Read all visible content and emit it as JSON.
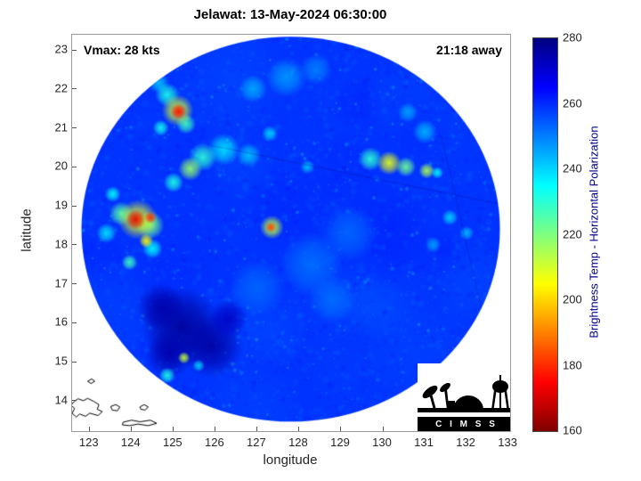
{
  "figure": {
    "title": "Jelawat: 13-May-2024 06:30:00",
    "storm_name": "Jelawat",
    "datetime": "13-May-2024 06:30:00",
    "annotation_left": "Vmax: 28 kts",
    "annotation_right": "21:18 away",
    "logo_text": "C I M S S"
  },
  "chart_data": {
    "type": "heatmap",
    "title": "Jelawat: 13-May-2024 06:30:00",
    "xlabel": "longitude",
    "ylabel": "latitude",
    "xlim": [
      122.58,
      133.04
    ],
    "ylim": [
      13.22,
      23.39
    ],
    "x_ticks": [
      123,
      124,
      125,
      126,
      127,
      128,
      129,
      130,
      131,
      132,
      133
    ],
    "y_ticks": [
      14,
      15,
      16,
      17,
      18,
      19,
      20,
      21,
      22,
      23
    ],
    "grid": false,
    "colorbar": {
      "label": "Brightness Temp - Horizontal Polarization",
      "min": 160,
      "max": 280,
      "ticks": [
        160,
        180,
        200,
        220,
        240,
        260,
        280
      ],
      "colormap": "jet-reversed",
      "stops": [
        [
          0,
          "#000080"
        ],
        [
          0.125,
          "#0000ff"
        ],
        [
          0.375,
          "#00ffff"
        ],
        [
          0.625,
          "#ffff00"
        ],
        [
          0.875,
          "#ff0000"
        ],
        [
          1,
          "#800000"
        ]
      ]
    },
    "swath": {
      "shape": "circular-microwave-swath",
      "center_lon": 127.8,
      "center_lat": 18.4,
      "radius_deg": 5.0,
      "background_temp_K": 259
    },
    "features_format": [
      "lon",
      "lat",
      "radius_deg",
      "temp_K"
    ],
    "features": [
      [
        125.2,
        15.9,
        1.0,
        277
      ],
      [
        124.7,
        16.4,
        0.6,
        275
      ],
      [
        125.9,
        15.4,
        0.8,
        276
      ],
      [
        126.3,
        16.1,
        0.5,
        272
      ],
      [
        124.9,
        15.2,
        0.6,
        275
      ],
      [
        124.15,
        18.65,
        0.5,
        208
      ],
      [
        124.1,
        18.65,
        0.25,
        172
      ],
      [
        124.45,
        18.7,
        0.15,
        180
      ],
      [
        124.45,
        18.5,
        0.35,
        222
      ],
      [
        123.75,
        18.8,
        0.3,
        225
      ],
      [
        124.35,
        18.1,
        0.18,
        205
      ],
      [
        124.5,
        17.9,
        0.25,
        235
      ],
      [
        125.1,
        21.45,
        0.4,
        210
      ],
      [
        125.12,
        21.42,
        0.2,
        175
      ],
      [
        124.85,
        21.85,
        0.3,
        232
      ],
      [
        124.65,
        22.15,
        0.25,
        242
      ],
      [
        125.3,
        21.1,
        0.25,
        228
      ],
      [
        124.7,
        21.0,
        0.2,
        233
      ],
      [
        127.35,
        18.45,
        0.3,
        212
      ],
      [
        127.33,
        18.45,
        0.13,
        182
      ],
      [
        130.15,
        20.1,
        0.3,
        208
      ],
      [
        130.55,
        20.0,
        0.25,
        222
      ],
      [
        129.7,
        20.2,
        0.3,
        230
      ],
      [
        131.05,
        19.9,
        0.2,
        215
      ],
      [
        131.3,
        19.85,
        0.15,
        235
      ],
      [
        125.4,
        19.95,
        0.3,
        218
      ],
      [
        125.7,
        20.25,
        0.35,
        230
      ],
      [
        126.2,
        20.45,
        0.4,
        238
      ],
      [
        126.8,
        20.3,
        0.3,
        242
      ],
      [
        125.0,
        19.6,
        0.25,
        232
      ],
      [
        127.3,
        20.85,
        0.2,
        240
      ],
      [
        128.2,
        20.0,
        0.18,
        243
      ],
      [
        123.95,
        17.55,
        0.2,
        228
      ],
      [
        123.55,
        19.3,
        0.2,
        235
      ],
      [
        123.4,
        18.3,
        0.25,
        238
      ],
      [
        125.25,
        15.1,
        0.15,
        212
      ],
      [
        124.85,
        14.65,
        0.2,
        232
      ],
      [
        125.6,
        14.9,
        0.15,
        240
      ],
      [
        127.7,
        22.3,
        0.5,
        247
      ],
      [
        128.4,
        22.5,
        0.4,
        250
      ],
      [
        126.9,
        22.0,
        0.35,
        245
      ],
      [
        131.6,
        18.7,
        0.2,
        240
      ],
      [
        132.0,
        18.3,
        0.18,
        243
      ],
      [
        131.2,
        18.0,
        0.2,
        246
      ],
      [
        131.0,
        20.9,
        0.3,
        244
      ],
      [
        130.6,
        21.4,
        0.25,
        246
      ],
      [
        128.3,
        17.5,
        0.8,
        252
      ],
      [
        129.2,
        18.3,
        0.7,
        253
      ],
      [
        127.0,
        16.9,
        0.7,
        253
      ],
      [
        128.8,
        16.6,
        0.6,
        252
      ]
    ],
    "seams": [
      [
        [
          125.9,
          20.55
        ],
        [
          133.0,
          19.0
        ]
      ],
      [
        [
          131.4,
          20.8
        ],
        [
          132.6,
          15.2
        ]
      ]
    ],
    "coastlines": [
      [
        [
          122.6,
          13.95
        ],
        [
          122.72,
          14.05
        ],
        [
          122.85,
          14.0
        ],
        [
          122.95,
          14.06
        ],
        [
          123.1,
          13.98
        ],
        [
          123.22,
          13.9
        ],
        [
          123.18,
          13.78
        ],
        [
          123.3,
          13.72
        ],
        [
          123.2,
          13.62
        ],
        [
          123.0,
          13.68
        ],
        [
          122.9,
          13.6
        ],
        [
          122.76,
          13.66
        ],
        [
          122.68,
          13.58
        ],
        [
          122.58,
          13.68
        ],
        [
          122.64,
          13.8
        ],
        [
          122.56,
          13.88
        ]
      ],
      [
        [
          123.5,
          13.85
        ],
        [
          123.62,
          13.9
        ],
        [
          123.72,
          13.84
        ],
        [
          123.66,
          13.74
        ],
        [
          123.54,
          13.76
        ]
      ],
      [
        [
          124.2,
          13.84
        ],
        [
          124.3,
          13.9
        ],
        [
          124.4,
          13.84
        ],
        [
          124.32,
          13.76
        ],
        [
          124.22,
          13.78
        ]
      ],
      [
        [
          123.8,
          13.45
        ],
        [
          124.0,
          13.5
        ],
        [
          124.2,
          13.46
        ],
        [
          124.45,
          13.5
        ],
        [
          124.6,
          13.42
        ],
        [
          124.4,
          13.36
        ],
        [
          124.15,
          13.4
        ],
        [
          123.95,
          13.36
        ],
        [
          123.78,
          13.38
        ]
      ],
      [
        [
          122.95,
          14.5
        ],
        [
          123.05,
          14.56
        ],
        [
          123.12,
          14.5
        ],
        [
          123.03,
          14.44
        ]
      ]
    ]
  }
}
